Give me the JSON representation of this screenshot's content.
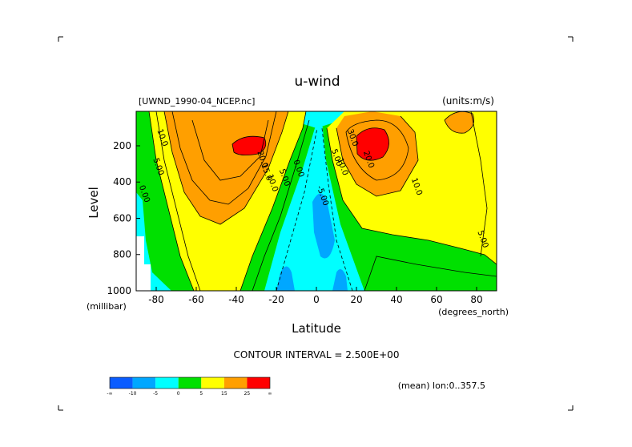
{
  "chart_data": {
    "type": "contour",
    "title": "u-wind",
    "dataset_label": "[UWND_1990-04_NCEP.nc]",
    "units_label": "(units:m/s)",
    "xlabel": "Latitude",
    "xunits": "(degrees_north)",
    "ylabel": "Level",
    "yunits": "(millibar)",
    "xlim": [
      -90,
      90
    ],
    "ylim": [
      1000,
      10
    ],
    "x_ticks": [
      -80,
      -60,
      -40,
      -20,
      0,
      20,
      40,
      60,
      80
    ],
    "y_ticks": [
      1000,
      800,
      600,
      400,
      200
    ],
    "contour_interval_text": "CONTOUR INTERVAL = 2.500E+00",
    "mean_label": "(mean) lon:0..357.5",
    "contour_labels": [
      {
        "text": "10.0",
        "lat": -78,
        "level": 160
      },
      {
        "text": "5.00",
        "lat": -80,
        "level": 320
      },
      {
        "text": "0.00",
        "lat": -87,
        "level": 470
      },
      {
        "text": "20.0",
        "lat": -28,
        "level": 280
      },
      {
        "text": "15.0",
        "lat": -26,
        "level": 350
      },
      {
        "text": "10.0",
        "lat": -23,
        "level": 410
      },
      {
        "text": "5.00",
        "lat": -17,
        "level": 380
      },
      {
        "text": "0.00",
        "lat": -10,
        "level": 330
      },
      {
        "text": "-5.00",
        "lat": 2,
        "level": 480
      },
      {
        "text": "5.00",
        "lat": 9,
        "level": 270
      },
      {
        "text": "10.0",
        "lat": 12,
        "level": 320
      },
      {
        "text": "20.0",
        "lat": 25,
        "level": 280
      },
      {
        "text": "30.0",
        "lat": 17,
        "level": 160
      },
      {
        "text": "10.0",
        "lat": 49,
        "level": 430
      },
      {
        "text": "5.00",
        "lat": 82,
        "level": 720
      }
    ],
    "colorbar": {
      "colors": [
        "#0a5cff",
        "#00a7ff",
        "#00ffff",
        "#00e000",
        "#ffff00",
        "#ff9f00",
        "#ff0000"
      ],
      "labels": [
        "-∞",
        "-10",
        "-5",
        "0",
        "5",
        "15",
        "25",
        "∞"
      ]
    }
  }
}
